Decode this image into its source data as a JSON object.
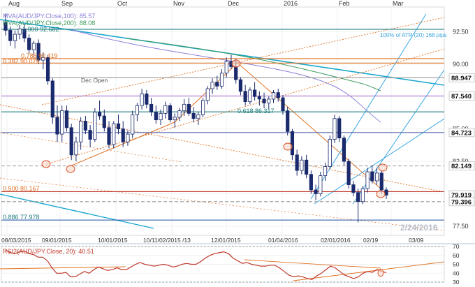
{
  "chart_data": [
    {
      "type": "candlestick",
      "instrument": "AUD/JPY",
      "months_top": [
        "Aug",
        "Sep",
        "Oct",
        "Nov",
        "Dec",
        "2016",
        "Feb",
        "Mar"
      ],
      "date_ticks_bottom": [
        "08/03/2015",
        "09/01/2015",
        "10/01/2015",
        "10/11/02/2015 /13",
        "12/01/2015",
        "01/04/2016",
        "02/01/2016",
        "02/19",
        "03/09"
      ],
      "price_ticks": [
        92.5,
        90.0,
        87.5,
        85.0,
        82.5,
        80.0,
        77.5
      ],
      "ylim": [
        76.8,
        94.4
      ],
      "legend": [
        {
          "text": "MVA(AUD/JPY.Close,100): 85.57",
          "color": "#8a7fd8"
        },
        {
          "text": "MVA(AUD/JPY.Close,200): 88.08",
          "color": "#3a9a5a"
        }
      ],
      "fib_labels": [
        {
          "text": "1.000 92.682",
          "color": "#1c7d7d"
        },
        {
          "text": "0.786 90.419",
          "color": "#e07020"
        },
        {
          "text": "0.382 90.079",
          "color": "#e07020"
        },
        {
          "text": "0.618 86.317",
          "color": "#1c7d7d"
        },
        {
          "text": "0.500 80.167",
          "color": "#e07020"
        },
        {
          "text": "0.886 77.978",
          "color": "#1c7d7d"
        }
      ],
      "annotations": [
        "Dec Open",
        "100% of ATR (20) 168 pips",
        "2/24/2016"
      ],
      "price_boxes": [
        {
          "label": "88.947",
          "value": 88.947
        },
        {
          "label": "87.540",
          "value": 87.54
        },
        {
          "label": "84.723",
          "value": 84.723
        },
        {
          "label": "82.149",
          "value": 82.149
        },
        {
          "label": "79.919",
          "value": 79.919
        },
        {
          "label": "79.396",
          "value": 79.396
        }
      ],
      "horizontal_levels": [
        {
          "value": 92.682,
          "color": "#1c7d7d",
          "style": "solid"
        },
        {
          "value": 90.419,
          "color": "#e07020",
          "style": "solid"
        },
        {
          "value": 90.079,
          "color": "#e07020",
          "style": "solid"
        },
        {
          "value": 88.947,
          "color": "#999999",
          "style": "solid"
        },
        {
          "value": 87.54,
          "color": "#b07ad6",
          "style": "solid"
        },
        {
          "value": 86.317,
          "color": "#1c7d7d",
          "style": "solid"
        },
        {
          "value": 84.723,
          "color": "#5a6bb0",
          "style": "solid"
        },
        {
          "value": 82.149,
          "color": "#999999",
          "style": "dashed"
        },
        {
          "value": 80.167,
          "color": "#c0392b",
          "style": "solid"
        },
        {
          "value": 79.396,
          "color": "#999999",
          "style": "dashed"
        },
        {
          "value": 77.978,
          "color": "#1c4fa0",
          "style": "solid"
        }
      ],
      "candles": [
        [
          93.2,
          93.9,
          92.2,
          92.6
        ],
        [
          92.6,
          92.9,
          91.4,
          91.8
        ],
        [
          91.8,
          92.6,
          91.2,
          92.3
        ],
        [
          92.3,
          93.0,
          91.9,
          92.7
        ],
        [
          92.7,
          93.1,
          91.7,
          92.0
        ],
        [
          92.0,
          92.3,
          90.8,
          91.1
        ],
        [
          91.1,
          91.8,
          90.5,
          91.6
        ],
        [
          91.6,
          91.9,
          90.0,
          90.3
        ],
        [
          90.3,
          90.9,
          89.6,
          90.5
        ],
        [
          90.5,
          90.7,
          88.4,
          88.7
        ],
        [
          88.7,
          88.9,
          85.4,
          85.9
        ],
        [
          85.9,
          86.8,
          84.0,
          84.6
        ],
        [
          84.6,
          86.8,
          84.0,
          86.4
        ],
        [
          86.4,
          86.8,
          84.8,
          85.1
        ],
        [
          85.1,
          85.4,
          82.6,
          83.0
        ],
        [
          83.0,
          84.4,
          82.5,
          84.0
        ],
        [
          84.0,
          85.9,
          83.4,
          85.6
        ],
        [
          85.6,
          86.0,
          84.6,
          84.9
        ],
        [
          84.9,
          85.3,
          83.6,
          84.2
        ],
        [
          84.2,
          86.6,
          84.0,
          86.3
        ],
        [
          86.3,
          87.2,
          85.7,
          86.0
        ],
        [
          86.0,
          86.5,
          84.8,
          85.1
        ],
        [
          85.1,
          85.6,
          83.5,
          83.8
        ],
        [
          83.8,
          85.6,
          83.5,
          85.4
        ],
        [
          85.4,
          86.1,
          84.6,
          85.0
        ],
        [
          85.0,
          85.6,
          83.6,
          84.0
        ],
        [
          84.0,
          84.9,
          83.7,
          84.6
        ],
        [
          84.6,
          86.4,
          84.3,
          86.1
        ],
        [
          86.1,
          87.0,
          85.6,
          86.8
        ],
        [
          86.8,
          88.1,
          86.5,
          87.7
        ],
        [
          87.7,
          88.0,
          86.6,
          86.9
        ],
        [
          86.9,
          87.4,
          86.0,
          86.3
        ],
        [
          86.3,
          86.8,
          85.4,
          85.7
        ],
        [
          85.7,
          86.5,
          85.3,
          86.2
        ],
        [
          86.2,
          87.1,
          85.8,
          86.8
        ],
        [
          86.8,
          87.0,
          85.5,
          85.7
        ],
        [
          85.7,
          86.2,
          85.1,
          85.9
        ],
        [
          85.9,
          86.6,
          85.6,
          86.4
        ],
        [
          86.4,
          87.3,
          86.0,
          86.9
        ],
        [
          86.9,
          87.4,
          86.0,
          86.2
        ],
        [
          86.2,
          86.7,
          85.5,
          85.8
        ],
        [
          85.8,
          86.3,
          85.3,
          86.1
        ],
        [
          86.1,
          87.4,
          85.9,
          87.2
        ],
        [
          87.2,
          88.3,
          86.9,
          88.1
        ],
        [
          88.1,
          88.9,
          87.7,
          88.6
        ],
        [
          88.6,
          89.1,
          88.0,
          88.3
        ],
        [
          88.3,
          89.6,
          88.1,
          89.3
        ],
        [
          89.3,
          90.5,
          89.0,
          90.2
        ],
        [
          90.2,
          90.7,
          89.6,
          89.8
        ],
        [
          89.8,
          90.4,
          88.5,
          88.8
        ],
        [
          88.8,
          89.0,
          87.6,
          87.9
        ],
        [
          87.9,
          88.4,
          86.8,
          87.1
        ],
        [
          87.1,
          88.2,
          86.9,
          88.0
        ],
        [
          88.0,
          88.6,
          87.2,
          87.5
        ],
        [
          87.5,
          87.9,
          86.8,
          87.3
        ],
        [
          87.3,
          87.8,
          86.6,
          87.0
        ],
        [
          87.0,
          87.5,
          86.5,
          87.3
        ],
        [
          87.3,
          88.0,
          87.0,
          87.8
        ],
        [
          87.8,
          88.1,
          87.1,
          87.4
        ],
        [
          87.4,
          87.6,
          86.1,
          86.4
        ],
        [
          86.4,
          86.7,
          84.5,
          84.8
        ],
        [
          84.8,
          85.0,
          82.6,
          83.0
        ],
        [
          83.0,
          83.4,
          81.4,
          81.8
        ],
        [
          81.8,
          82.9,
          81.5,
          82.6
        ],
        [
          82.6,
          83.0,
          81.2,
          81.5
        ],
        [
          81.5,
          81.8,
          80.0,
          80.3
        ],
        [
          80.3,
          80.7,
          79.5,
          80.0
        ],
        [
          80.0,
          81.7,
          79.8,
          81.4
        ],
        [
          81.4,
          82.4,
          81.0,
          82.1
        ],
        [
          82.1,
          84.5,
          81.9,
          84.2
        ],
        [
          84.2,
          86.1,
          83.9,
          85.8
        ],
        [
          85.8,
          86.0,
          84.0,
          84.3
        ],
        [
          84.3,
          84.5,
          82.2,
          82.5
        ],
        [
          82.5,
          82.7,
          80.4,
          80.7
        ],
        [
          80.7,
          81.0,
          79.8,
          80.1
        ],
        [
          80.1,
          80.4,
          77.8,
          79.4
        ],
        [
          79.4,
          80.6,
          79.2,
          80.4
        ],
        [
          80.4,
          82.0,
          80.1,
          81.7
        ],
        [
          81.7,
          82.2,
          80.8,
          81.0
        ],
        [
          81.0,
          82.0,
          80.7,
          81.6
        ],
        [
          81.6,
          81.8,
          80.0,
          80.3
        ],
        [
          80.3,
          80.5,
          79.6,
          79.9
        ]
      ]
    },
    {
      "type": "line",
      "name": "RSI2(AUD/JPY.Close, 20): 40.51",
      "yticks": [
        70,
        60,
        50,
        40,
        30
      ],
      "ylim": [
        30,
        70
      ],
      "values": [
        66,
        63,
        62,
        64,
        65,
        62,
        61,
        58,
        58,
        54,
        46,
        40,
        40,
        41,
        36,
        36,
        39,
        42,
        40,
        44,
        47,
        45,
        43,
        44,
        46,
        44,
        44,
        47,
        50,
        52,
        50,
        49,
        48,
        49,
        50,
        49,
        47,
        48,
        50,
        51,
        50,
        50,
        53,
        57,
        60,
        62,
        63,
        64,
        62,
        57,
        54,
        51,
        52,
        50,
        49,
        48,
        48,
        49,
        49,
        46,
        42,
        38,
        36,
        37,
        36,
        34,
        33,
        37,
        40,
        44,
        48,
        46,
        42,
        38,
        36,
        34,
        36,
        40,
        42,
        41,
        44,
        42,
        40.5
      ]
    }
  ]
}
